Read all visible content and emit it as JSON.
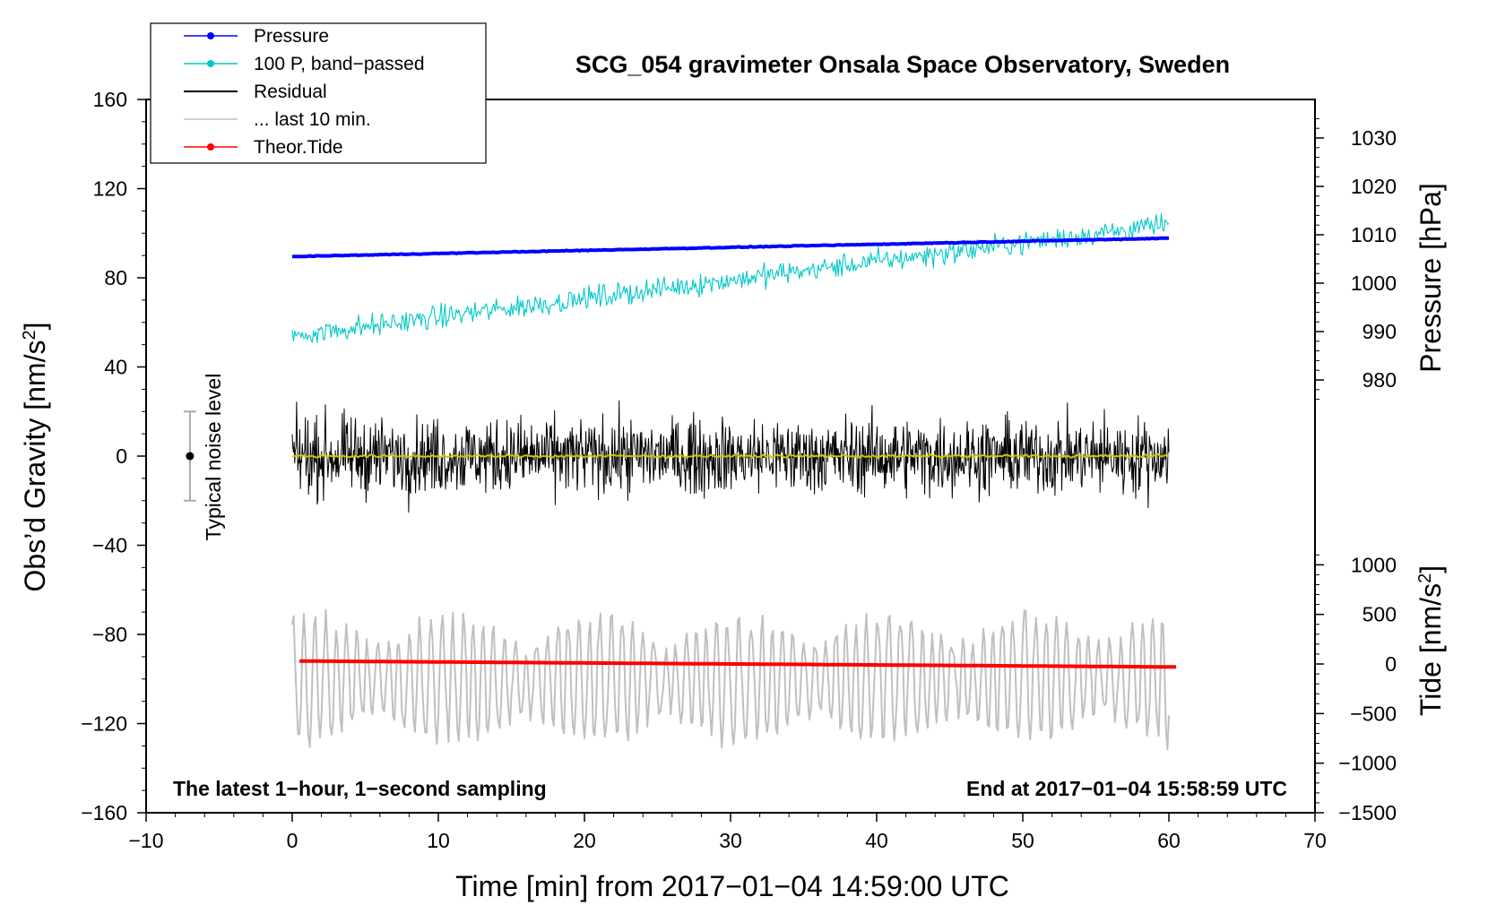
{
  "chart_data": {
    "type": "line",
    "title": "SCG_054 gravimeter Onsala Space Observatory, Sweden",
    "xlabel": "Time [min] from 2017−01−04 14:59:00 UTC",
    "ylabel_left": "Obs’d Gravity [nm/s²]",
    "ylabel_left_parts": {
      "main": "Obs’d Gravity [nm/s",
      "sup": "2",
      "end": "]"
    },
    "ylabel_right_pressure": "Pressure [hPa]",
    "ylabel_right_tide": "Tide [nm/s²]",
    "ylabel_right_tide_parts": {
      "main": "Tide [nm/s",
      "sup": "2",
      "end": "]"
    },
    "xlim": [
      -10,
      70
    ],
    "ylim_left": [
      -160,
      160
    ],
    "pressure_axis_range": [
      975,
      1035
    ],
    "tide_axis_range": [
      -1500,
      1500
    ],
    "x_ticks": [
      -10,
      0,
      10,
      20,
      30,
      40,
      50,
      60,
      70
    ],
    "x_tick_labels": [
      "−10",
      "0",
      "10",
      "20",
      "30",
      "40",
      "50",
      "60",
      "70"
    ],
    "y_left_ticks": [
      -160,
      -120,
      -80,
      -40,
      0,
      40,
      80,
      120,
      160
    ],
    "y_left_tick_labels": [
      "−160",
      "−120",
      "−80",
      "−40",
      "0",
      "40",
      "80",
      "120",
      "160"
    ],
    "pressure_ticks": [
      980,
      990,
      1000,
      1010,
      1020,
      1030
    ],
    "pressure_tick_labels": [
      "980",
      "990",
      "1000",
      "1010",
      "1020",
      "1030"
    ],
    "tide_ticks": [
      -1500,
      -1000,
      -500,
      0,
      500,
      1000
    ],
    "tide_tick_labels": [
      "−1500",
      "−1000",
      "−500",
      "0",
      "500",
      "1000"
    ],
    "legend": [
      {
        "label": "Pressure",
        "color": "#0000ff",
        "marker": "dot"
      },
      {
        "label": "100 P, band−passed",
        "color": "#00c8c8",
        "marker": "dot"
      },
      {
        "label": "Residual",
        "color": "#000000",
        "marker": "none"
      },
      {
        "label": "... last 10 min.",
        "color": "#c0c0c0",
        "marker": "none"
      },
      {
        "label": "Theor.Tide",
        "color": "#ff0000",
        "marker": "dot"
      }
    ],
    "noise_label": "Typical noise level",
    "noise_level": {
      "x": -7,
      "center": 0,
      "half_range": 20
    },
    "annotation_left": "The latest 1−hour, 1−second sampling",
    "annotation_right": "End at 2017−01−04 15:58:59 UTC",
    "series": [
      {
        "name": "Pressure",
        "axis": "pressure",
        "color": "#0000ff",
        "x_start": 0,
        "x_end": 60,
        "start": 1005.5,
        "end": 1009.3,
        "noise_amp": 0.15,
        "width": 4
      },
      {
        "name": "100 P, band−passed",
        "axis": "left",
        "color": "#00c8c8",
        "x_start": 0,
        "x_end": 60,
        "start": 54,
        "end": 104,
        "noise_amp": 10,
        "width": 1.1
      },
      {
        "name": "Residual",
        "axis": "left",
        "color": "#000000",
        "x_start": 0,
        "x_end": 60,
        "center": 0,
        "noise_amp": 30,
        "width": 1
      },
      {
        "name": "Residual smoothed",
        "axis": "left",
        "color": "#c8c800",
        "x_start": 0,
        "x_end": 60,
        "center": 0,
        "noise_amp": 1.2,
        "width": 2
      },
      {
        "name": "... last 10 min.",
        "axis": "left",
        "color": "#c0c0c0",
        "x_start": 0,
        "x_end": 60,
        "center": -100,
        "noise_amp": 28,
        "width": 2
      },
      {
        "name": "Theor.Tide",
        "axis": "tide",
        "color": "#ff0000",
        "x_start": 0.5,
        "x_end": 60.5,
        "start": 30,
        "end": -30,
        "width": 4
      }
    ]
  }
}
